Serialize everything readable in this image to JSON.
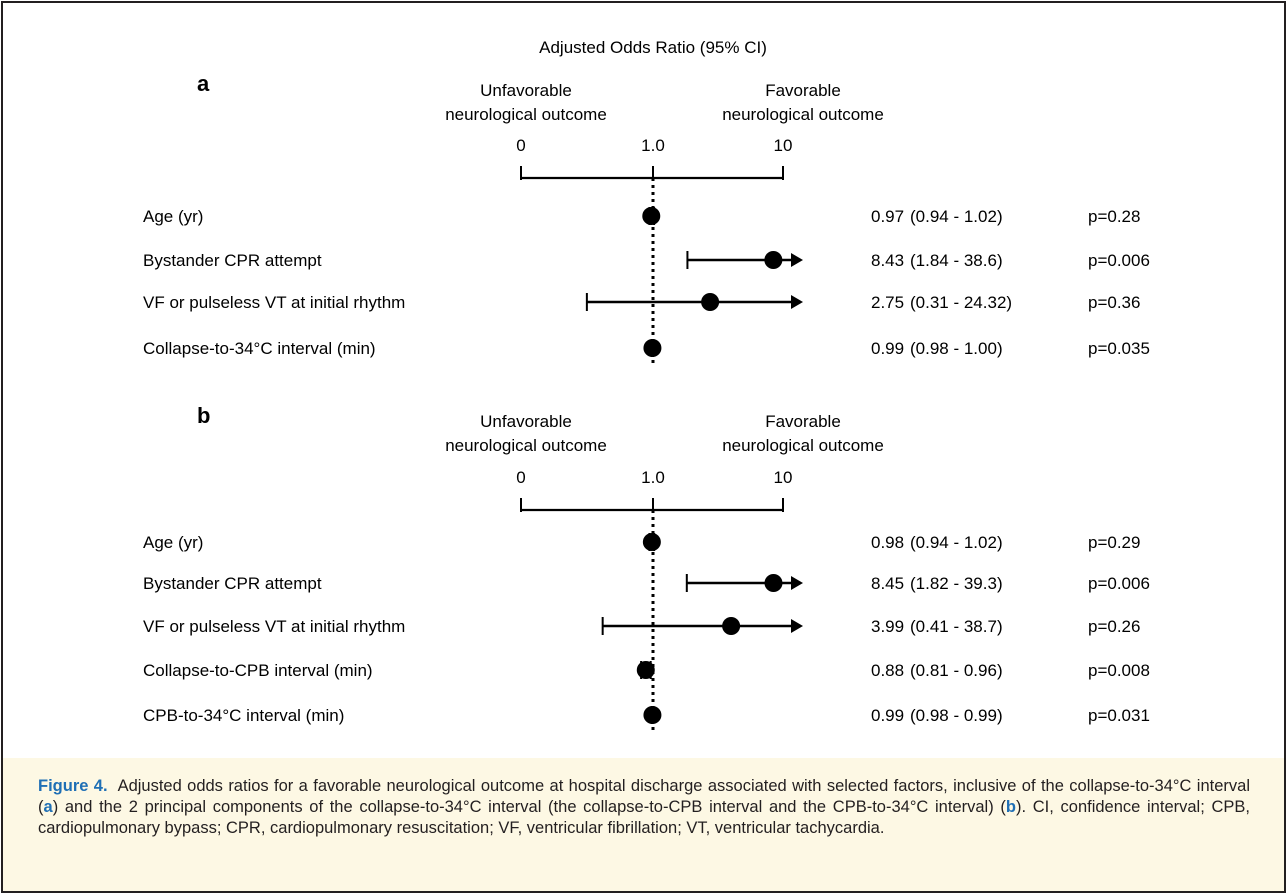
{
  "chart_data": {
    "type": "forest",
    "title": "Adjusted Odds Ratio (95% CI)",
    "x_scale": "log",
    "reference_value": 1.0,
    "ticks": [
      "0",
      "1.0",
      "10"
    ],
    "left_label": [
      "Unfavorable",
      "neurological outcome"
    ],
    "right_label": [
      "Favorable",
      "neurological outcome"
    ],
    "panels": [
      {
        "panel": "a",
        "rows": [
          {
            "label": "Age (yr)",
            "or": 0.97,
            "lo": 0.94,
            "hi": 1.02,
            "or_text": "0.97",
            "ci_text": "(0.94 - 1.02)",
            "p_text": "p=0.28"
          },
          {
            "label": "Bystander CPR attempt",
            "or": 8.43,
            "lo": 1.84,
            "hi": 38.6,
            "or_text": "8.43",
            "ci_text": "(1.84 - 38.6)",
            "p_text": "p=0.006"
          },
          {
            "label": "VF or pulseless VT at initial rhythm",
            "or": 2.75,
            "lo": 0.31,
            "hi": 24.32,
            "or_text": "2.75",
            "ci_text": "(0.31 - 24.32)",
            "p_text": "p=0.36"
          },
          {
            "label": "Collapse-to-34°C interval (min)",
            "or": 0.99,
            "lo": 0.98,
            "hi": 1.0,
            "or_text": "0.99",
            "ci_text": "(0.98 - 1.00)",
            "p_text": "p=0.035"
          }
        ]
      },
      {
        "panel": "b",
        "rows": [
          {
            "label": "Age (yr)",
            "or": 0.98,
            "lo": 0.94,
            "hi": 1.02,
            "or_text": "0.98",
            "ci_text": "(0.94 - 1.02)",
            "p_text": "p=0.29"
          },
          {
            "label": "Bystander CPR attempt",
            "or": 8.45,
            "lo": 1.82,
            "hi": 39.3,
            "or_text": "8.45",
            "ci_text": "(1.82 - 39.3)",
            "p_text": "p=0.006"
          },
          {
            "label": "VF or pulseless VT at initial rhythm",
            "or": 3.99,
            "lo": 0.41,
            "hi": 38.7,
            "or_text": "3.99",
            "ci_text": "(0.41 - 38.7)",
            "p_text": "p=0.26"
          },
          {
            "label": "Collapse-to-CPB interval (min)",
            "or": 0.88,
            "lo": 0.81,
            "hi": 0.96,
            "or_text": "0.88",
            "ci_text": "(0.81 - 0.96)",
            "p_text": "p=0.008"
          },
          {
            "label": "CPB-to-34°C interval (min)",
            "or": 0.99,
            "lo": 0.98,
            "hi": 0.99,
            "or_text": "0.99",
            "ci_text": "(0.98 - 0.99)",
            "p_text": "p=0.031"
          }
        ]
      }
    ]
  },
  "caption": {
    "label": "Figure 4.",
    "text_1": "Adjusted odds ratios for a favorable neurological outcome at hospital discharge associated with selected factors, inclusive of the collapse-to-34°C interval (",
    "ref_a": "a",
    "text_2": ") and the 2 principal components of the collapse-to-34°C interval (the collapse-to-CPB interval and the CPB-to-34°C interval) (",
    "ref_b": "b",
    "text_3": "). CI, confidence interval; CPB, cardiopulmonary bypass; CPR, cardiopulmonary resuscitation; VF, ventricular fibrillation; VT, ventricular tachycardia."
  },
  "colors": {
    "ink": "#000000",
    "frame": "#231f20",
    "caption_bg": "#fdf8e4",
    "accent": "#1f6fb5"
  }
}
